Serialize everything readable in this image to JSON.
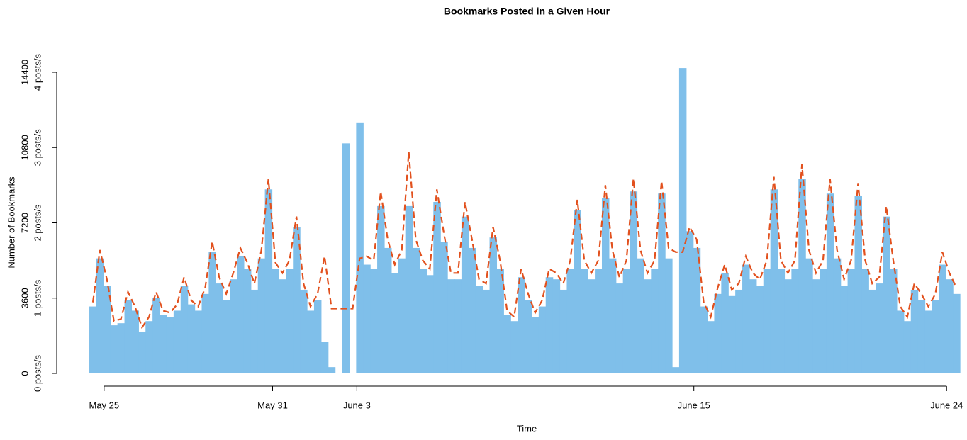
{
  "chart_data": {
    "type": "bar",
    "title": "Bookmarks Posted in a Given Hour",
    "xlabel": "Time",
    "ylabel": "Number of Bookmarks",
    "x": [
      -0.4,
      -0.15,
      0.1,
      0.35,
      0.6,
      0.85,
      1.1,
      1.35,
      1.6,
      1.85,
      2.1,
      2.35,
      2.6,
      2.85,
      3.1,
      3.35,
      3.6,
      3.85,
      4.1,
      4.35,
      4.6,
      4.85,
      5.1,
      5.35,
      5.6,
      5.85,
      6.1,
      6.35,
      6.6,
      6.85,
      7.1,
      7.35,
      7.6,
      7.85,
      8.1,
      8.35,
      8.6,
      8.85,
      9.1,
      9.35,
      9.6,
      9.85,
      10.1,
      10.35,
      10.6,
      10.85,
      11.1,
      11.35,
      11.6,
      11.85,
      12.1,
      12.35,
      12.6,
      12.85,
      13.1,
      13.35,
      13.6,
      13.85,
      14.1,
      14.35,
      14.6,
      14.85,
      15.1,
      15.35,
      15.6,
      15.85,
      16.1,
      16.35,
      16.6,
      16.85,
      17.1,
      17.35,
      17.6,
      17.85,
      18.1,
      18.35,
      18.6,
      18.85,
      19.1,
      19.35,
      19.6,
      19.85,
      20.1,
      20.35,
      20.6,
      20.85,
      21.1,
      21.35,
      21.6,
      21.85,
      22.1,
      22.35,
      22.6,
      22.85,
      23.1,
      23.35,
      23.6,
      23.85,
      24.1,
      24.35,
      24.6,
      24.85,
      25.1,
      25.35,
      25.6,
      25.85,
      26.1,
      26.35,
      26.6,
      26.85,
      27.1,
      27.35,
      27.6,
      27.85,
      28.1,
      28.35,
      28.6,
      28.85,
      29.1,
      29.35,
      29.6,
      29.85,
      30.1,
      30.35
    ],
    "series": [
      {
        "type": "bar",
        "color": "#7fbfea",
        "values": [
          3200,
          5500,
          4200,
          2300,
          2400,
          3500,
          3000,
          2000,
          2500,
          3600,
          2800,
          2700,
          3000,
          4200,
          3300,
          3000,
          3800,
          5800,
          4300,
          3500,
          4500,
          5600,
          5000,
          4000,
          5500,
          8800,
          5000,
          4500,
          5000,
          7000,
          4000,
          3000,
          3500,
          1500,
          300,
          0,
          11000,
          0,
          12000,
          5200,
          5000,
          8000,
          6000,
          4800,
          5500,
          8000,
          6000,
          5000,
          4700,
          8200,
          6300,
          4500,
          4500,
          7500,
          6000,
          4200,
          4000,
          6500,
          5000,
          2800,
          2500,
          4600,
          3500,
          2700,
          3200,
          4600,
          4500,
          4000,
          5000,
          7800,
          5000,
          4500,
          5000,
          8400,
          5500,
          4300,
          5000,
          8700,
          5500,
          4500,
          5000,
          8600,
          5500,
          300,
          14600,
          6800,
          6000,
          3200,
          2500,
          3800,
          4800,
          3700,
          4000,
          5200,
          4500,
          4200,
          5000,
          8800,
          5000,
          4500,
          5000,
          9300,
          5500,
          4500,
          5000,
          8600,
          5500,
          4200,
          5000,
          8500,
          5000,
          4000,
          4300,
          7500,
          5000,
          3000,
          2500,
          4000,
          3500,
          3000,
          3500,
          5200,
          4500,
          3800
        ]
      },
      {
        "type": "line",
        "color": "#e2511e",
        "dash": true,
        "values": [
          3400,
          5900,
          4500,
          2500,
          2600,
          3900,
          3200,
          2200,
          2700,
          3900,
          3000,
          2900,
          3300,
          4600,
          3500,
          3200,
          4100,
          6300,
          4600,
          3800,
          4800,
          6000,
          5300,
          4300,
          5900,
          9300,
          5300,
          4800,
          5400,
          7500,
          4300,
          3200,
          3800,
          5600,
          3100,
          3100,
          3100,
          3100,
          5500,
          5600,
          5400,
          8700,
          6400,
          5200,
          5900,
          10600,
          6400,
          5400,
          5000,
          8800,
          6700,
          4800,
          4800,
          8200,
          6400,
          4500,
          4300,
          7000,
          5400,
          3000,
          2700,
          5000,
          3800,
          2900,
          3500,
          5000,
          4800,
          4300,
          5400,
          8300,
          5400,
          4800,
          5400,
          9000,
          5900,
          4600,
          5400,
          9300,
          5900,
          4800,
          5400,
          9200,
          6000,
          5800,
          5800,
          7000,
          6400,
          3400,
          2700,
          4100,
          5200,
          4000,
          4300,
          5600,
          4800,
          4500,
          5400,
          9400,
          5400,
          4800,
          5400,
          10000,
          5900,
          4800,
          5400,
          9300,
          5900,
          4500,
          5400,
          9100,
          5400,
          4300,
          4600,
          8000,
          5400,
          3200,
          2700,
          4300,
          3800,
          3200,
          3800,
          5800,
          4800,
          4100
        ]
      }
    ],
    "xlim": [
      -0.45,
      30.6
    ],
    "xticks": [
      {
        "value": 0,
        "label": "May 25"
      },
      {
        "value": 6,
        "label": "May 31"
      },
      {
        "value": 9,
        "label": "June 3"
      },
      {
        "value": 21,
        "label": "June 15"
      },
      {
        "value": 30,
        "label": "June 24"
      }
    ],
    "ylim": [
      0,
      14400
    ],
    "yticks": [
      0,
      3600,
      7200,
      10800,
      14400
    ],
    "y2lim": [
      0,
      4
    ],
    "y2ticks": [
      {
        "value": 0,
        "label": "0 posts/s"
      },
      {
        "value": 1,
        "label": "1 posts/s"
      },
      {
        "value": 2,
        "label": "2 posts/s"
      },
      {
        "value": 3,
        "label": "3 posts/s"
      },
      {
        "value": 4,
        "label": "4 posts/s"
      }
    ]
  }
}
